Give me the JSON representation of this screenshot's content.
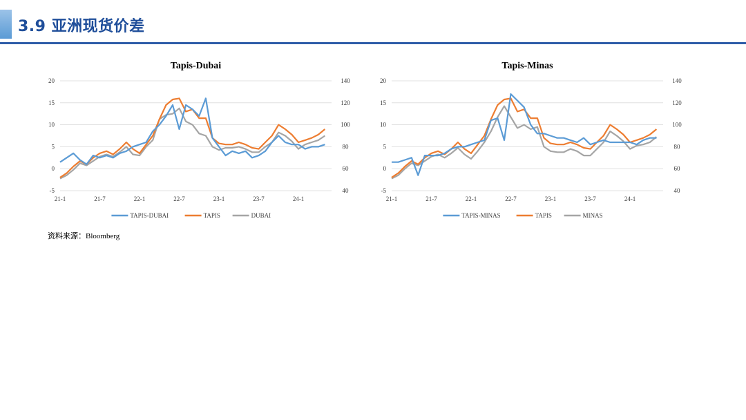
{
  "page": {
    "title": "3.9 亚洲现货价差",
    "source_label": "资料来源：",
    "source_name": "Bloomberg"
  },
  "colors": {
    "spread": "#5b9bd5",
    "tapis": "#ed7d31",
    "benchmark": "#a5a5a5",
    "grid": "#d9d9d9",
    "header": "#2e5da8"
  },
  "chart_data": [
    {
      "type": "line",
      "title": "Tapis-Dubai",
      "x_ticks": [
        "21-1",
        "21-7",
        "22-1",
        "22-7",
        "23-1",
        "23-7",
        "24-1"
      ],
      "ylim": [
        -5,
        20
      ],
      "y_ticks": [
        -5,
        0,
        5,
        10,
        15,
        20
      ],
      "y2lim": [
        40,
        140
      ],
      "y2_ticks": [
        40,
        60,
        80,
        100,
        120,
        140
      ],
      "grid": true,
      "legend_position": "bottom",
      "series": [
        {
          "name": "TAPIS-DUBAI",
          "axis": "left",
          "color": "#5b9bd5",
          "x": [
            "2021-01",
            "2021-02",
            "2021-03",
            "2021-04",
            "2021-05",
            "2021-06",
            "2021-07",
            "2021-08",
            "2021-09",
            "2021-10",
            "2021-11",
            "2021-12",
            "2022-01",
            "2022-02",
            "2022-03",
            "2022-04",
            "2022-05",
            "2022-06",
            "2022-07",
            "2022-08",
            "2022-09",
            "2022-10",
            "2022-11",
            "2022-12",
            "2023-01",
            "2023-02",
            "2023-03",
            "2023-04",
            "2023-05",
            "2023-06",
            "2023-07",
            "2023-08",
            "2023-09",
            "2023-10",
            "2023-11",
            "2023-12",
            "2024-01",
            "2024-02",
            "2024-03",
            "2024-04",
            "2024-05"
          ],
          "values": [
            1.5,
            2.5,
            3.5,
            2.0,
            1.0,
            3.0,
            2.5,
            3.0,
            2.5,
            3.5,
            4.0,
            5.0,
            5.5,
            6.0,
            8.5,
            10.0,
            12.0,
            14.5,
            9.0,
            14.5,
            13.5,
            12.0,
            16.0,
            7.0,
            5.0,
            3.0,
            4.0,
            3.5,
            4.0,
            2.5,
            3.0,
            4.0,
            6.0,
            7.5,
            6.0,
            5.5,
            5.5,
            4.5,
            5.0,
            5.0,
            5.5
          ]
        },
        {
          "name": "TAPIS",
          "axis": "right",
          "color": "#ed7d31",
          "x": [
            "2021-01",
            "2021-02",
            "2021-03",
            "2021-04",
            "2021-05",
            "2021-06",
            "2021-07",
            "2021-08",
            "2021-09",
            "2021-10",
            "2021-11",
            "2021-12",
            "2022-01",
            "2022-02",
            "2022-03",
            "2022-04",
            "2022-05",
            "2022-06",
            "2022-07",
            "2022-08",
            "2022-09",
            "2022-10",
            "2022-11",
            "2022-12",
            "2023-01",
            "2023-02",
            "2023-03",
            "2023-04",
            "2023-05",
            "2023-06",
            "2023-07",
            "2023-08",
            "2023-09",
            "2023-10",
            "2023-11",
            "2023-12",
            "2024-01",
            "2024-02",
            "2024-03",
            "2024-04",
            "2024-05"
          ],
          "values": [
            52,
            56,
            62,
            67,
            64,
            70,
            74,
            76,
            73,
            78,
            84,
            78,
            74,
            82,
            90,
            105,
            118,
            123,
            124,
            112,
            114,
            106,
            106,
            88,
            83,
            82,
            82,
            84,
            82,
            79,
            78,
            84,
            90,
            100,
            96,
            91,
            84,
            86,
            88,
            91,
            96
          ]
        },
        {
          "name": "DUBAI",
          "axis": "right",
          "color": "#a5a5a5",
          "x": [
            "2021-01",
            "2021-02",
            "2021-03",
            "2021-04",
            "2021-05",
            "2021-06",
            "2021-07",
            "2021-08",
            "2021-09",
            "2021-10",
            "2021-11",
            "2021-12",
            "2022-01",
            "2022-02",
            "2022-03",
            "2022-04",
            "2022-05",
            "2022-06",
            "2022-07",
            "2022-08",
            "2022-09",
            "2022-10",
            "2022-11",
            "2022-12",
            "2023-01",
            "2023-02",
            "2023-03",
            "2023-04",
            "2023-05",
            "2023-06",
            "2023-07",
            "2023-08",
            "2023-09",
            "2023-10",
            "2023-11",
            "2023-12",
            "2024-01",
            "2024-02",
            "2024-03",
            "2024-04",
            "2024-05"
          ],
          "values": [
            51,
            54,
            59,
            65,
            63,
            67,
            71,
            73,
            71,
            75,
            80,
            73,
            72,
            80,
            86,
            105,
            109,
            110,
            115,
            103,
            100,
            92,
            90,
            80,
            77,
            79,
            79,
            80,
            78,
            75,
            75,
            80,
            84,
            93,
            90,
            85,
            78,
            82,
            84,
            86,
            90
          ]
        }
      ]
    },
    {
      "type": "line",
      "title": "Tapis-Minas",
      "x_ticks": [
        "21-1",
        "21-7",
        "22-1",
        "22-7",
        "23-1",
        "23-7",
        "24-1"
      ],
      "ylim": [
        -5,
        20
      ],
      "y_ticks": [
        -5,
        0,
        5,
        10,
        15,
        20
      ],
      "y2lim": [
        40,
        140
      ],
      "y2_ticks": [
        40,
        60,
        80,
        100,
        120,
        140
      ],
      "grid": true,
      "legend_position": "bottom",
      "series": [
        {
          "name": "TAPIS-MINAS",
          "axis": "left",
          "color": "#5b9bd5",
          "x": [
            "2021-01",
            "2021-02",
            "2021-03",
            "2021-04",
            "2021-05",
            "2021-06",
            "2021-07",
            "2021-08",
            "2021-09",
            "2021-10",
            "2021-11",
            "2021-12",
            "2022-01",
            "2022-02",
            "2022-03",
            "2022-04",
            "2022-05",
            "2022-06",
            "2022-07",
            "2022-08",
            "2022-09",
            "2022-10",
            "2022-11",
            "2022-12",
            "2023-01",
            "2023-02",
            "2023-03",
            "2023-04",
            "2023-05",
            "2023-06",
            "2023-07",
            "2023-08",
            "2023-09",
            "2023-10",
            "2023-11",
            "2023-12",
            "2024-01",
            "2024-02",
            "2024-03",
            "2024-04",
            "2024-05"
          ],
          "values": [
            1.5,
            1.5,
            2.0,
            2.5,
            -1.5,
            3.0,
            3.0,
            3.0,
            3.5,
            4.5,
            5.0,
            5.0,
            5.5,
            6.0,
            6.5,
            11.0,
            11.5,
            6.5,
            17.0,
            15.5,
            14.0,
            10.0,
            8.0,
            8.0,
            7.5,
            7.0,
            7.0,
            6.5,
            6.0,
            7.0,
            5.5,
            6.0,
            6.5,
            6.0,
            6.0,
            6.0,
            6.0,
            5.5,
            6.5,
            7.0,
            7.0
          ]
        },
        {
          "name": "TAPIS",
          "axis": "right",
          "color": "#ed7d31",
          "x": [
            "2021-01",
            "2021-02",
            "2021-03",
            "2021-04",
            "2021-05",
            "2021-06",
            "2021-07",
            "2021-08",
            "2021-09",
            "2021-10",
            "2021-11",
            "2021-12",
            "2022-01",
            "2022-02",
            "2022-03",
            "2022-04",
            "2022-05",
            "2022-06",
            "2022-07",
            "2022-08",
            "2022-09",
            "2022-10",
            "2022-11",
            "2022-12",
            "2023-01",
            "2023-02",
            "2023-03",
            "2023-04",
            "2023-05",
            "2023-06",
            "2023-07",
            "2023-08",
            "2023-09",
            "2023-10",
            "2023-11",
            "2023-12",
            "2024-01",
            "2024-02",
            "2024-03",
            "2024-04",
            "2024-05"
          ],
          "values": [
            52,
            56,
            62,
            67,
            64,
            70,
            74,
            76,
            73,
            78,
            84,
            78,
            74,
            82,
            90,
            105,
            118,
            123,
            124,
            112,
            114,
            106,
            106,
            88,
            83,
            82,
            82,
            84,
            82,
            79,
            78,
            84,
            90,
            100,
            96,
            91,
            84,
            86,
            88,
            91,
            96
          ]
        },
        {
          "name": "MINAS",
          "axis": "right",
          "color": "#a5a5a5",
          "x": [
            "2021-01",
            "2021-02",
            "2021-03",
            "2021-04",
            "2021-05",
            "2021-06",
            "2021-07",
            "2021-08",
            "2021-09",
            "2021-10",
            "2021-11",
            "2021-12",
            "2022-01",
            "2022-02",
            "2022-03",
            "2022-04",
            "2022-05",
            "2022-06",
            "2022-07",
            "2022-08",
            "2022-09",
            "2022-10",
            "2022-11",
            "2022-12",
            "2023-01",
            "2023-02",
            "2023-03",
            "2023-04",
            "2023-05",
            "2023-06",
            "2023-07",
            "2023-08",
            "2023-09",
            "2023-10",
            "2023-11",
            "2023-12",
            "2024-01",
            "2024-02",
            "2024-03",
            "2024-04",
            "2024-05"
          ],
          "values": [
            51,
            54,
            60,
            65,
            63,
            67,
            71,
            73,
            70,
            74,
            79,
            73,
            69,
            76,
            84,
            94,
            107,
            117,
            107,
            97,
            100,
            96,
            98,
            80,
            76,
            75,
            75,
            78,
            76,
            72,
            72,
            78,
            84,
            94,
            90,
            85,
            78,
            81,
            82,
            84,
            89
          ]
        }
      ]
    }
  ]
}
